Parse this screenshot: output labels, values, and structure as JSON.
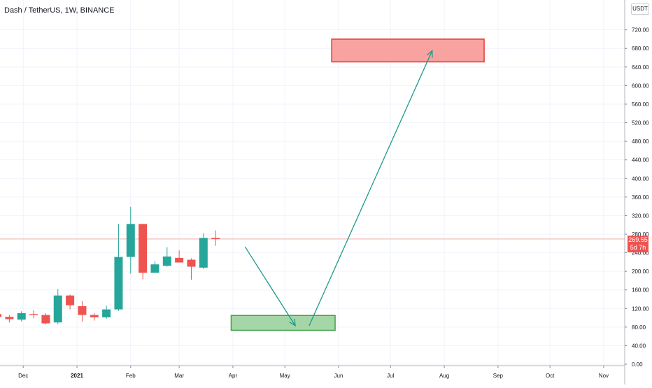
{
  "header": {
    "symbol_title": "Dash / TetherUS, 1W, BINANCE",
    "currency_badge": "USDT"
  },
  "last_price": {
    "value": "269.55",
    "countdown": "5d 7h",
    "color": "#ef5350"
  },
  "colors": {
    "up": "#26a69a",
    "down": "#ef5350",
    "grid": "#f0f3fa",
    "axis_text": "#131722",
    "arrow": "#1e9b8a",
    "target_zone_fill": "#f8a3a0",
    "target_zone_border": "#e53935",
    "entry_zone_fill": "#a5d6a7",
    "entry_zone_border": "#43a047"
  },
  "chart_data": {
    "type": "candlestick",
    "title": "Dash / TetherUS, 1W, BINANCE",
    "x_ticks": [
      {
        "date": "2020-12-01",
        "label": "Dec"
      },
      {
        "date": "2021-01-01",
        "label": "2021",
        "bold": true
      },
      {
        "date": "2021-02-01",
        "label": "Feb"
      },
      {
        "date": "2021-03-01",
        "label": "Mar"
      },
      {
        "date": "2021-04-01",
        "label": "Apr"
      },
      {
        "date": "2021-05-01",
        "label": "May"
      },
      {
        "date": "2021-06-01",
        "label": "Jun"
      },
      {
        "date": "2021-07-01",
        "label": "Jul"
      },
      {
        "date": "2021-08-01",
        "label": "Aug"
      },
      {
        "date": "2021-09-01",
        "label": "Sep"
      },
      {
        "date": "2021-10-01",
        "label": "Oct"
      },
      {
        "date": "2021-11-01",
        "label": "Nov"
      }
    ],
    "y_ticks": [
      "0.00",
      "40.00",
      "80.00",
      "120.00",
      "160.00",
      "200.00",
      "240.00",
      "280.00",
      "320.00",
      "360.00",
      "400.00",
      "440.00",
      "480.00",
      "520.00",
      "560.00",
      "600.00",
      "640.00",
      "680.00",
      "720.00"
    ],
    "ylim": [
      -6,
      780
    ],
    "candles": [
      {
        "date": "2020-11-09",
        "open": 90,
        "high": 126,
        "low": 84,
        "close": 108
      },
      {
        "date": "2020-11-16",
        "open": 108,
        "high": 114,
        "low": 100,
        "close": 102
      },
      {
        "date": "2020-11-23",
        "open": 102,
        "high": 106,
        "low": 90,
        "close": 97
      },
      {
        "date": "2020-11-30",
        "open": 96,
        "high": 114,
        "low": 92,
        "close": 110
      },
      {
        "date": "2020-12-07",
        "open": 108,
        "high": 116,
        "low": 99,
        "close": 106
      },
      {
        "date": "2020-12-14",
        "open": 106,
        "high": 110,
        "low": 86,
        "close": 88
      },
      {
        "date": "2020-12-21",
        "open": 90,
        "high": 162,
        "low": 86,
        "close": 148
      },
      {
        "date": "2020-12-28",
        "open": 148,
        "high": 150,
        "low": 118,
        "close": 127
      },
      {
        "date": "2021-01-04",
        "open": 125,
        "high": 136,
        "low": 92,
        "close": 106
      },
      {
        "date": "2021-01-11",
        "open": 106,
        "high": 110,
        "low": 94,
        "close": 101
      },
      {
        "date": "2021-01-18",
        "open": 101,
        "high": 126,
        "low": 98,
        "close": 118
      },
      {
        "date": "2021-01-25",
        "open": 118,
        "high": 302,
        "low": 115,
        "close": 231
      },
      {
        "date": "2021-02-01",
        "open": 231,
        "high": 339,
        "low": 195,
        "close": 302
      },
      {
        "date": "2021-02-08",
        "open": 302,
        "high": 302,
        "low": 183,
        "close": 197
      },
      {
        "date": "2021-02-15",
        "open": 197,
        "high": 222,
        "low": 197,
        "close": 215
      },
      {
        "date": "2021-02-22",
        "open": 212,
        "high": 252,
        "low": 210,
        "close": 232
      },
      {
        "date": "2021-03-01",
        "open": 229,
        "high": 245,
        "low": 220,
        "close": 219
      },
      {
        "date": "2021-03-08",
        "open": 225,
        "high": 228,
        "low": 182,
        "close": 210
      },
      {
        "date": "2021-03-15",
        "open": 208,
        "high": 282,
        "low": 205,
        "close": 272
      },
      {
        "date": "2021-03-22",
        "open": 272,
        "high": 288,
        "low": 255,
        "close": 269.55
      }
    ],
    "drawings": [
      {
        "kind": "rectangle",
        "name": "target-zone",
        "x_start": "2021-05-28",
        "x_end": "2021-08-24",
        "y_low": 651,
        "y_high": 700
      },
      {
        "kind": "rectangle",
        "name": "entry-zone",
        "x_start": "2021-03-31",
        "x_end": "2021-05-30",
        "y_low": 73,
        "y_high": 105
      },
      {
        "kind": "arrow",
        "name": "down-arrow",
        "from": {
          "date": "2021-04-08",
          "price": 253
        },
        "to": {
          "date": "2021-05-07",
          "price": 83
        }
      },
      {
        "kind": "arrow",
        "name": "up-arrow",
        "from": {
          "date": "2021-05-15",
          "price": 83
        },
        "to": {
          "date": "2021-07-25",
          "price": 675
        }
      }
    ]
  }
}
